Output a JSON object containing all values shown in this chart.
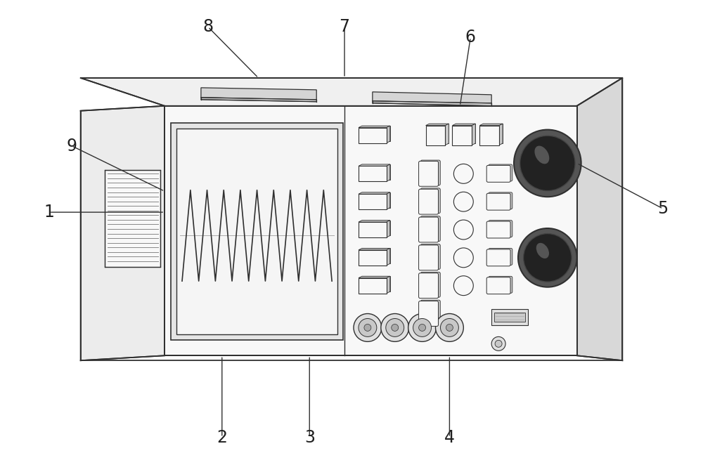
{
  "bg_color": "#ffffff",
  "line_color": "#303030",
  "fill_white": "#ffffff",
  "fill_light": "#f2f2f2",
  "fill_lighter": "#f8f8f8",
  "fill_medium": "#e0e0e0",
  "fill_dark": "#c8c8c8",
  "fill_darker": "#b0b0b0",
  "fill_screen": "#f5f5f5",
  "fill_side": "#e8e8e8",
  "fill_left_face": "#ececec",
  "fill_top": "#f0f0f0",
  "fill_right_face": "#d8d8d8",
  "fill_knob_dark": "#222222",
  "fill_knob_rim": "#555555"
}
